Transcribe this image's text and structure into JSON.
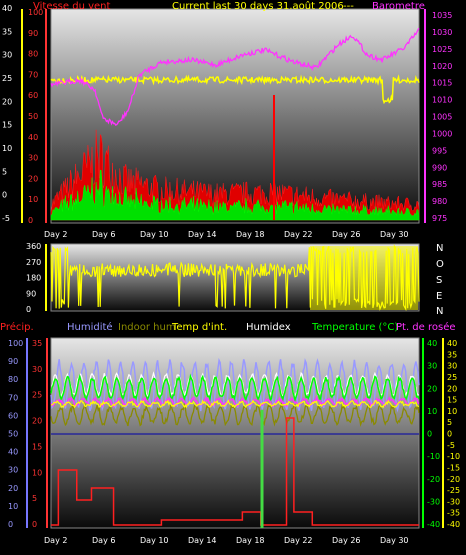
{
  "header": {
    "wind_title": "Vitesse du vent",
    "status": "Current last 30 days 31.août 2006",
    "dashes": "---",
    "baro_title": "Barometre"
  },
  "x_ticks": [
    "Day 2",
    "Day 6",
    "Day 10",
    "Day 14",
    "Day 18",
    "Day 22",
    "Day 26",
    "Day 30"
  ],
  "panel1": {
    "left_ticks": [
      "40",
      "35",
      "30",
      "25",
      "20",
      "15",
      "10",
      "5",
      "0",
      "-5"
    ],
    "mid_ticks": [
      "100",
      "90",
      "80",
      "70",
      "60",
      "50",
      "40",
      "30",
      "20",
      "10",
      "0"
    ],
    "right_ticks": [
      "1035",
      "1030",
      "1025",
      "1020",
      "1015",
      "1010",
      "1005",
      "1000",
      "995",
      "990",
      "985",
      "980",
      "975"
    ]
  },
  "panel2": {
    "left_ticks": [
      "360",
      "270",
      "180",
      "90",
      "0"
    ],
    "compass": [
      "N",
      "O",
      "S",
      "E",
      "N"
    ]
  },
  "panel3": {
    "legend": {
      "precip": "Précip.",
      "humidity": "Humidité",
      "indoor_hum": "Indoor hum",
      "indoor_temp": "Temp d'int.",
      "humidex": "Humidex",
      "temperature": "Temperature (°C)",
      "dewpoint": "Pt. de rosée"
    },
    "far_left_ticks": [
      "100",
      "90",
      "80",
      "70",
      "60",
      "50",
      "40",
      "30",
      "20",
      "10",
      "0"
    ],
    "left_ticks": [
      "35",
      "30",
      "25",
      "20",
      "15",
      "10",
      "5",
      "0"
    ],
    "green_ticks": [
      "40",
      "30",
      "20",
      "10",
      "0",
      "-10",
      "-20",
      "-30",
      "-40"
    ],
    "right_ticks": [
      "40",
      "35",
      "30",
      "25",
      "20",
      "15",
      "10",
      "5",
      "0",
      "-5",
      "-10",
      "-15",
      "-20",
      "-25",
      "-30",
      "-35",
      "-40"
    ]
  },
  "colors": {
    "wind_title": "#ff2020",
    "status": "#ffff00",
    "baro": "#ff33ff",
    "wind_avg": "#00ff00",
    "wind_gust": "#ff0000",
    "direction": "#ffff00",
    "humidity": "#9999ff",
    "indoor_hum": "#8a8a00",
    "humidex": "#ffffff",
    "temperature": "#00ff00",
    "dewpoint": "#ff33ff",
    "precip": "#ff2020"
  },
  "chart_data": [
    {
      "type": "line",
      "name": "wind-and-barometer",
      "x": [
        "Day 2",
        "Day 6",
        "Day 10",
        "Day 14",
        "Day 18",
        "Day 22",
        "Day 26",
        "Day 30"
      ],
      "series": [
        {
          "name": "Barometre",
          "values": [
            1019,
            1002,
            1017,
            1019,
            1019,
            1015,
            1026,
            1021
          ]
        },
        {
          "name": "Vitesse du vent",
          "values": [
            2,
            11,
            6,
            4,
            4,
            3,
            3,
            2
          ]
        }
      ],
      "ylim_left": [
        -5,
        40
      ],
      "ylim_right": [
        975,
        1035
      ]
    },
    {
      "type": "line",
      "name": "wind-direction",
      "x": [
        "Day 2",
        "Day 6",
        "Day 10",
        "Day 14",
        "Day 18",
        "Day 22",
        "Day 26",
        "Day 30"
      ],
      "ylim": [
        0,
        360
      ]
    },
    {
      "type": "line",
      "name": "temperature-humidity",
      "x": [
        "Day 2",
        "Day 6",
        "Day 10",
        "Day 14",
        "Day 18",
        "Day 22",
        "Day 26",
        "Day 30"
      ],
      "series": [
        {
          "name": "Humidité",
          "values": [
            75,
            82,
            80,
            78,
            76,
            80,
            79,
            77
          ]
        },
        {
          "name": "Temperature (°C)",
          "values": [
            22,
            23,
            22,
            21,
            20,
            22,
            22,
            21
          ]
        },
        {
          "name": "Pt. de rosée",
          "values": [
            19,
            19,
            19,
            18,
            18,
            18,
            19,
            18
          ]
        }
      ]
    }
  ]
}
